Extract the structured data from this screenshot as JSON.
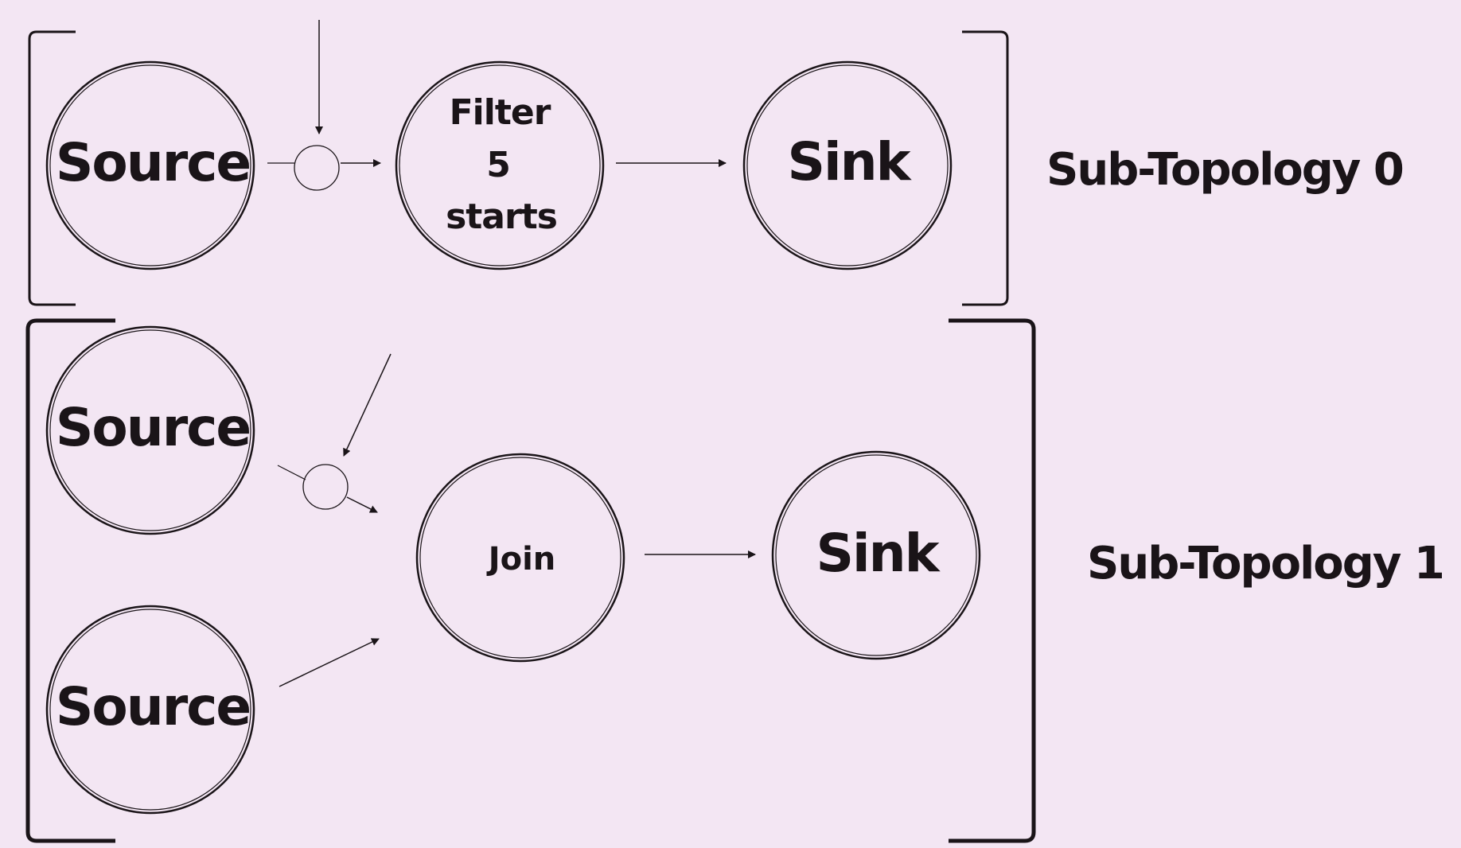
{
  "colors": {
    "background": "#f3e6f3",
    "stroke": "#1a1418"
  },
  "sub_topology_0": {
    "label": "Sub-Topology 0",
    "source": {
      "label": "Source"
    },
    "filter": {
      "line1": "Filter",
      "line2": "5",
      "line3": "starts"
    },
    "sink": {
      "label": "Sink"
    }
  },
  "sub_topology_1": {
    "label": "Sub-Topology 1",
    "source_top": {
      "label": "Source"
    },
    "source_bottom": {
      "label": "Source"
    },
    "join": {
      "label": "Join"
    },
    "sink": {
      "label": "Sink"
    }
  }
}
